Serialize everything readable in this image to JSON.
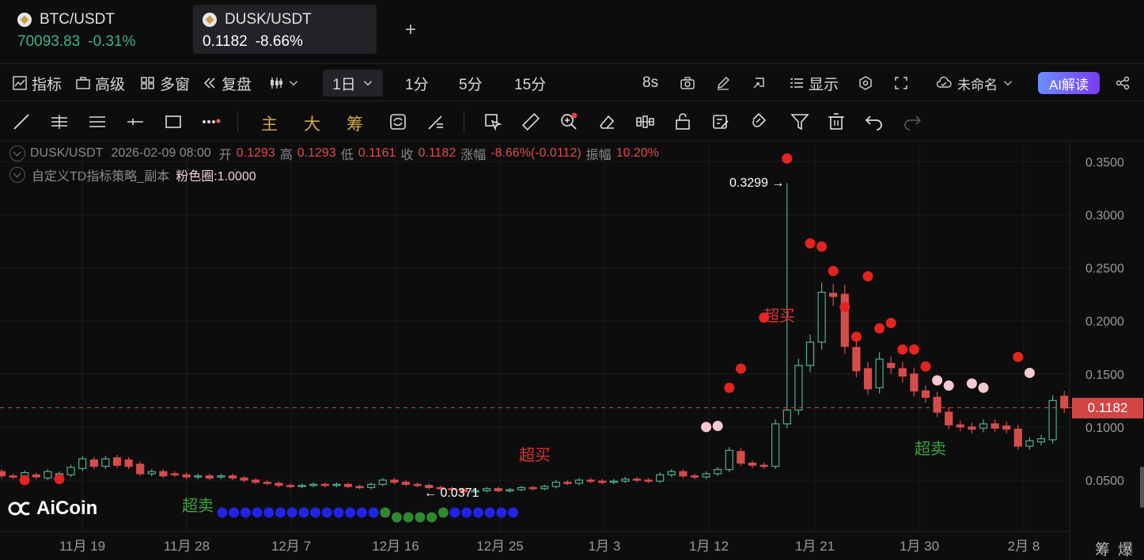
{
  "tabs": [
    {
      "pair": "BTC/USDT",
      "price": "70093.83",
      "change": "-0.31%"
    },
    {
      "pair": "DUSK/USDT",
      "price": "0.1182",
      "change": "-8.66%"
    }
  ],
  "toolbar": {
    "indicators": "指标",
    "advanced": "高级",
    "multi": "多窗",
    "replay": "复盘",
    "interval": "1日",
    "i1": "1分",
    "i5": "5分",
    "i15": "15分",
    "refresh": "8s",
    "display": "显示",
    "layout_name": "未命名",
    "ai": "AI解读"
  },
  "drawbar": {
    "main": "主",
    "big": "大",
    "chips": "筹"
  },
  "legend": {
    "symbol": "DUSK/USDT",
    "datetime": "2026-02-09 08:00",
    "open_l": "开",
    "open": "0.1293",
    "high_l": "高",
    "high": "0.1293",
    "low_l": "低",
    "low": "0.1161",
    "close_l": "收",
    "close": "0.1182",
    "chg_l": "涨幅",
    "chg": "-8.66%(-0.0112)",
    "amp_l": "振幅",
    "amp": "10.20%"
  },
  "indicator": {
    "name": "自定义TD指标策略_副本",
    "param": "粉色圈:1.0000"
  },
  "logo": "AiCoin",
  "corner": "筹爆",
  "chart_data": {
    "type": "candlestick",
    "y_ticks": [
      "0.3500",
      "0.3000",
      "0.2500",
      "0.2000",
      "0.1500",
      "0.1000",
      "0.0500"
    ],
    "x_ticks": [
      "11月 19",
      "11月 28",
      "12月 7",
      "12月 16",
      "12月 25",
      "1月 3",
      "1月 12",
      "1月 21",
      "1月 30",
      "2月 8"
    ],
    "last_price": "0.1182",
    "high_label": "0.3299",
    "low_label": "0.0371",
    "annotations": [
      {
        "text": "超卖",
        "color": "#3fa33f",
        "day": 17
      },
      {
        "text": "超买",
        "color": "#e03030",
        "day": 45
      },
      {
        "text": "超买",
        "color": "#e03030",
        "day": 67
      },
      {
        "text": "超卖",
        "color": "#3fa33f",
        "day": 80
      }
    ],
    "candles": [
      [
        0.058,
        0.054
      ],
      [
        0.054,
        0.053
      ],
      [
        0.052,
        0.057
      ],
      [
        0.055,
        0.053
      ],
      [
        0.052,
        0.058
      ],
      [
        0.056,
        0.056
      ],
      [
        0.055,
        0.062
      ],
      [
        0.061,
        0.07
      ],
      [
        0.069,
        0.063
      ],
      [
        0.063,
        0.07
      ],
      [
        0.071,
        0.064
      ],
      [
        0.069,
        0.063
      ],
      [
        0.065,
        0.056
      ],
      [
        0.056,
        0.058
      ],
      [
        0.058,
        0.054
      ],
      [
        0.056,
        0.055
      ],
      [
        0.055,
        0.053
      ],
      [
        0.053,
        0.054
      ],
      [
        0.054,
        0.052
      ],
      [
        0.053,
        0.054
      ],
      [
        0.054,
        0.052
      ],
      [
        0.052,
        0.05
      ],
      [
        0.05,
        0.048
      ],
      [
        0.048,
        0.047
      ],
      [
        0.047,
        0.045
      ],
      [
        0.045,
        0.044
      ],
      [
        0.044,
        0.045
      ],
      [
        0.045,
        0.046
      ],
      [
        0.046,
        0.045
      ],
      [
        0.045,
        0.046
      ],
      [
        0.046,
        0.044
      ],
      [
        0.044,
        0.043
      ],
      [
        0.043,
        0.046
      ],
      [
        0.046,
        0.05
      ],
      [
        0.05,
        0.048
      ],
      [
        0.048,
        0.046
      ],
      [
        0.046,
        0.045
      ],
      [
        0.045,
        0.043
      ],
      [
        0.043,
        0.042
      ],
      [
        0.042,
        0.041
      ],
      [
        0.041,
        0.039
      ],
      [
        0.039,
        0.04
      ],
      [
        0.04,
        0.042
      ],
      [
        0.042,
        0.04
      ],
      [
        0.04,
        0.041
      ],
      [
        0.041,
        0.043
      ],
      [
        0.043,
        0.042
      ],
      [
        0.042,
        0.044
      ],
      [
        0.044,
        0.048
      ],
      [
        0.048,
        0.047
      ],
      [
        0.047,
        0.05
      ],
      [
        0.05,
        0.049
      ],
      [
        0.049,
        0.048
      ],
      [
        0.048,
        0.049
      ],
      [
        0.049,
        0.051
      ],
      [
        0.051,
        0.05
      ],
      [
        0.05,
        0.049
      ],
      [
        0.049,
        0.055
      ],
      [
        0.055,
        0.058
      ],
      [
        0.058,
        0.054
      ],
      [
        0.054,
        0.053
      ],
      [
        0.053,
        0.056
      ],
      [
        0.056,
        0.06
      ],
      [
        0.06,
        0.078
      ],
      [
        0.077,
        0.066
      ],
      [
        0.066,
        0.064
      ],
      [
        0.064,
        0.063
      ],
      [
        0.063,
        0.103
      ],
      [
        0.103,
        0.116
      ],
      [
        0.116,
        0.158
      ],
      [
        0.158,
        0.18
      ],
      [
        0.18,
        0.227
      ],
      [
        0.226,
        0.223
      ],
      [
        0.225,
        0.176
      ],
      [
        0.175,
        0.153
      ],
      [
        0.155,
        0.136
      ],
      [
        0.137,
        0.164
      ],
      [
        0.16,
        0.156
      ],
      [
        0.155,
        0.148
      ],
      [
        0.15,
        0.134
      ],
      [
        0.134,
        0.128
      ],
      [
        0.128,
        0.114
      ],
      [
        0.114,
        0.102
      ],
      [
        0.102,
        0.1
      ],
      [
        0.1,
        0.098
      ],
      [
        0.099,
        0.103
      ],
      [
        0.103,
        0.099
      ],
      [
        0.101,
        0.098
      ],
      [
        0.098,
        0.082
      ],
      [
        0.082,
        0.087
      ],
      [
        0.086,
        0.089
      ],
      [
        0.088,
        0.125
      ],
      [
        0.129,
        0.118
      ]
    ],
    "red_dots": [
      [
        2,
        0.05
      ],
      [
        5,
        0.051
      ],
      [
        63,
        0.137
      ],
      [
        64,
        0.155
      ],
      [
        66,
        0.203
      ],
      [
        68,
        0.353
      ],
      [
        70,
        0.273
      ],
      [
        71,
        0.27
      ],
      [
        72,
        0.247
      ],
      [
        73,
        0.213
      ],
      [
        74,
        0.185
      ],
      [
        75,
        0.242
      ],
      [
        76,
        0.193
      ],
      [
        77,
        0.198
      ],
      [
        78,
        0.173
      ],
      [
        79,
        0.173
      ],
      [
        80,
        0.157
      ],
      [
        88,
        0.166
      ]
    ],
    "pink_dots": [
      [
        61,
        0.1
      ],
      [
        62,
        0.101
      ],
      [
        81,
        0.144
      ],
      [
        82,
        0.139
      ],
      [
        84,
        0.141
      ],
      [
        85,
        0.137
      ],
      [
        89,
        0.151
      ]
    ],
    "bottom_dots": "blue×14,green×6,blue×6"
  }
}
